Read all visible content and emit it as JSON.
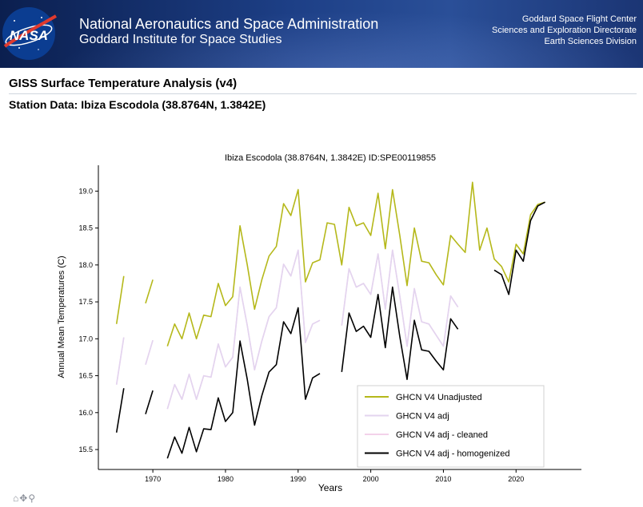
{
  "header": {
    "agency": "National Aeronautics and Space Administration",
    "institute": "Goddard Institute for Space Studies",
    "center_lines": [
      "Goddard Space Flight Center",
      "Sciences and Exploration Directorate",
      "Earth Sciences Division"
    ],
    "logo_text": "NASA"
  },
  "page": {
    "title": "GISS Surface Temperature Analysis (v4)",
    "station": "Station Data: Ibiza Escodola (38.8764N, 1.3842E)"
  },
  "toolbar": {
    "icons": [
      "home-icon",
      "move-icon",
      "zoom-icon"
    ],
    "glyphs": "⌂✥⚲"
  },
  "chart_data": {
    "type": "line",
    "title": "Ibiza Escodola (38.8764N, 1.3842E) ID:SPE00119855",
    "xlabel": "Years",
    "ylabel": "Annual Mean Temperatures (C)",
    "xlim": [
      1962.5,
      2029
    ],
    "ylim": [
      15.23,
      19.35
    ],
    "xticks": [
      1970,
      1980,
      1990,
      2000,
      2010,
      2020
    ],
    "yticks": [
      15.5,
      16.0,
      16.5,
      17.0,
      17.5,
      18.0,
      18.5,
      19.0
    ],
    "grid": false,
    "legend_position": "bottom-right",
    "series": [
      {
        "name": "GHCN V4 Unadjusted",
        "color": "#b5b81a",
        "points": [
          [
            1965,
            17.2
          ],
          [
            1966,
            17.85
          ],
          [
            null,
            null
          ],
          [
            1969,
            17.48
          ],
          [
            1970,
            17.8
          ],
          [
            null,
            null
          ],
          [
            1972,
            16.9
          ],
          [
            1973,
            17.2
          ],
          [
            1974,
            17.0
          ],
          [
            1975,
            17.35
          ],
          [
            1976,
            17.0
          ],
          [
            1977,
            17.32
          ],
          [
            1978,
            17.3
          ],
          [
            1979,
            17.75
          ],
          [
            1980,
            17.45
          ],
          [
            1981,
            17.57
          ],
          [
            1982,
            18.53
          ],
          [
            1983,
            18.0
          ],
          [
            1984,
            17.4
          ],
          [
            1985,
            17.8
          ],
          [
            1986,
            18.12
          ],
          [
            1987,
            18.25
          ],
          [
            1988,
            18.83
          ],
          [
            1989,
            18.67
          ],
          [
            1990,
            19.02
          ],
          [
            1991,
            17.77
          ],
          [
            1992,
            18.03
          ],
          [
            1993,
            18.07
          ],
          [
            1994,
            18.57
          ],
          [
            1995,
            18.55
          ],
          [
            1996,
            18.0
          ],
          [
            1997,
            18.78
          ],
          [
            1998,
            18.53
          ],
          [
            1999,
            18.57
          ],
          [
            2000,
            18.4
          ],
          [
            2001,
            18.97
          ],
          [
            2002,
            18.22
          ],
          [
            2003,
            19.02
          ],
          [
            2004,
            18.4
          ],
          [
            2005,
            17.72
          ],
          [
            2006,
            18.5
          ],
          [
            2007,
            18.05
          ],
          [
            2008,
            18.03
          ],
          [
            2009,
            17.87
          ],
          [
            2010,
            17.73
          ],
          [
            2011,
            18.4
          ],
          [
            2012,
            18.28
          ],
          [
            2013,
            18.17
          ],
          [
            2014,
            19.12
          ],
          [
            2015,
            18.2
          ],
          [
            2016,
            18.5
          ],
          [
            2017,
            18.08
          ],
          [
            2018,
            17.98
          ],
          [
            2019,
            17.77
          ],
          [
            2020,
            18.28
          ],
          [
            2021,
            18.15
          ],
          [
            2022,
            18.68
          ],
          [
            2023,
            18.82
          ],
          [
            2024,
            18.85
          ]
        ]
      },
      {
        "name": "GHCN V4 adj",
        "color": "#e3d4ef",
        "points": [
          [
            1965,
            16.38
          ],
          [
            1966,
            17.02
          ],
          [
            null,
            null
          ],
          [
            1969,
            16.65
          ],
          [
            1970,
            16.98
          ],
          [
            null,
            null
          ],
          [
            1972,
            16.05
          ],
          [
            1973,
            16.38
          ],
          [
            1974,
            16.18
          ],
          [
            1975,
            16.52
          ],
          [
            1976,
            16.18
          ],
          [
            1977,
            16.5
          ],
          [
            1978,
            16.48
          ],
          [
            1979,
            16.93
          ],
          [
            1980,
            16.62
          ],
          [
            1981,
            16.75
          ],
          [
            1982,
            17.7
          ],
          [
            1983,
            17.18
          ],
          [
            1984,
            16.58
          ],
          [
            1985,
            16.97
          ],
          [
            1986,
            17.3
          ],
          [
            1987,
            17.42
          ],
          [
            1988,
            18.01
          ],
          [
            1989,
            17.85
          ],
          [
            1990,
            18.2
          ],
          [
            1991,
            16.95
          ],
          [
            1992,
            17.2
          ],
          [
            1993,
            17.25
          ],
          [
            null,
            null
          ],
          [
            1996,
            17.18
          ],
          [
            1997,
            17.95
          ],
          [
            1998,
            17.7
          ],
          [
            1999,
            17.75
          ],
          [
            2000,
            17.6
          ],
          [
            2001,
            18.15
          ],
          [
            2002,
            17.4
          ],
          [
            2003,
            18.2
          ],
          [
            2004,
            17.58
          ],
          [
            2005,
            16.9
          ],
          [
            2006,
            17.68
          ],
          [
            2007,
            17.23
          ],
          [
            2008,
            17.2
          ],
          [
            2009,
            17.05
          ],
          [
            2010,
            16.9
          ],
          [
            2011,
            17.58
          ],
          [
            2012,
            17.43
          ]
        ]
      },
      {
        "name": "GHCN V4 adj - cleaned",
        "color": "#f3d2ea",
        "points": [
          [
            1965,
            16.38
          ],
          [
            1966,
            17.02
          ],
          [
            null,
            null
          ],
          [
            1969,
            16.65
          ],
          [
            1970,
            16.98
          ],
          [
            null,
            null
          ],
          [
            1972,
            16.05
          ],
          [
            1973,
            16.38
          ],
          [
            1974,
            16.18
          ],
          [
            1975,
            16.52
          ],
          [
            1976,
            16.18
          ],
          [
            1977,
            16.5
          ],
          [
            1978,
            16.48
          ],
          [
            1979,
            16.93
          ],
          [
            1980,
            16.62
          ],
          [
            1981,
            16.75
          ],
          [
            1982,
            17.7
          ],
          [
            1983,
            17.18
          ],
          [
            1984,
            16.58
          ],
          [
            1985,
            16.97
          ],
          [
            1986,
            17.3
          ],
          [
            1987,
            17.42
          ],
          [
            1988,
            18.01
          ],
          [
            1989,
            17.85
          ],
          [
            1990,
            18.2
          ],
          [
            1991,
            16.95
          ],
          [
            1992,
            17.2
          ],
          [
            1993,
            17.25
          ],
          [
            null,
            null
          ],
          [
            1996,
            17.18
          ],
          [
            1997,
            17.95
          ],
          [
            1998,
            17.7
          ],
          [
            1999,
            17.75
          ],
          [
            2000,
            17.6
          ],
          [
            2001,
            18.15
          ],
          [
            2002,
            17.4
          ],
          [
            2003,
            18.2
          ],
          [
            2004,
            17.58
          ],
          [
            2005,
            16.9
          ],
          [
            2006,
            17.68
          ],
          [
            2007,
            17.23
          ],
          [
            2008,
            17.2
          ],
          [
            2009,
            17.05
          ],
          [
            2010,
            16.9
          ],
          [
            2011,
            17.58
          ],
          [
            2012,
            17.43
          ]
        ]
      },
      {
        "name": "GHCN V4 adj - homogenized",
        "color": "#000000",
        "points": [
          [
            1965,
            15.73
          ],
          [
            1966,
            16.33
          ],
          [
            null,
            null
          ],
          [
            1969,
            15.98
          ],
          [
            1970,
            16.3
          ],
          [
            null,
            null
          ],
          [
            1972,
            15.38
          ],
          [
            1973,
            15.67
          ],
          [
            1974,
            15.45
          ],
          [
            1975,
            15.8
          ],
          [
            1976,
            15.47
          ],
          [
            1977,
            15.78
          ],
          [
            1978,
            15.77
          ],
          [
            1979,
            16.2
          ],
          [
            1980,
            15.88
          ],
          [
            1981,
            16.0
          ],
          [
            1982,
            16.97
          ],
          [
            1983,
            16.45
          ],
          [
            1984,
            15.83
          ],
          [
            1985,
            16.23
          ],
          [
            1986,
            16.55
          ],
          [
            1987,
            16.65
          ],
          [
            1988,
            17.23
          ],
          [
            1989,
            17.07
          ],
          [
            1990,
            17.42
          ],
          [
            1991,
            16.18
          ],
          [
            1992,
            16.47
          ],
          [
            1993,
            16.53
          ],
          [
            null,
            null
          ],
          [
            1996,
            16.55
          ],
          [
            1997,
            17.35
          ],
          [
            1998,
            17.1
          ],
          [
            1999,
            17.17
          ],
          [
            2000,
            17.02
          ],
          [
            2001,
            17.6
          ],
          [
            2002,
            16.88
          ],
          [
            2003,
            17.7
          ],
          [
            2004,
            17.03
          ],
          [
            2005,
            16.45
          ],
          [
            2006,
            17.25
          ],
          [
            2007,
            16.85
          ],
          [
            2008,
            16.83
          ],
          [
            2009,
            16.7
          ],
          [
            2010,
            16.58
          ],
          [
            2011,
            17.27
          ],
          [
            2012,
            17.13
          ],
          [
            null,
            null
          ],
          [
            2017,
            17.93
          ],
          [
            2018,
            17.87
          ],
          [
            2019,
            17.6
          ],
          [
            2020,
            18.2
          ],
          [
            2021,
            18.05
          ],
          [
            2022,
            18.6
          ],
          [
            2023,
            18.8
          ],
          [
            2024,
            18.85
          ]
        ]
      }
    ]
  }
}
